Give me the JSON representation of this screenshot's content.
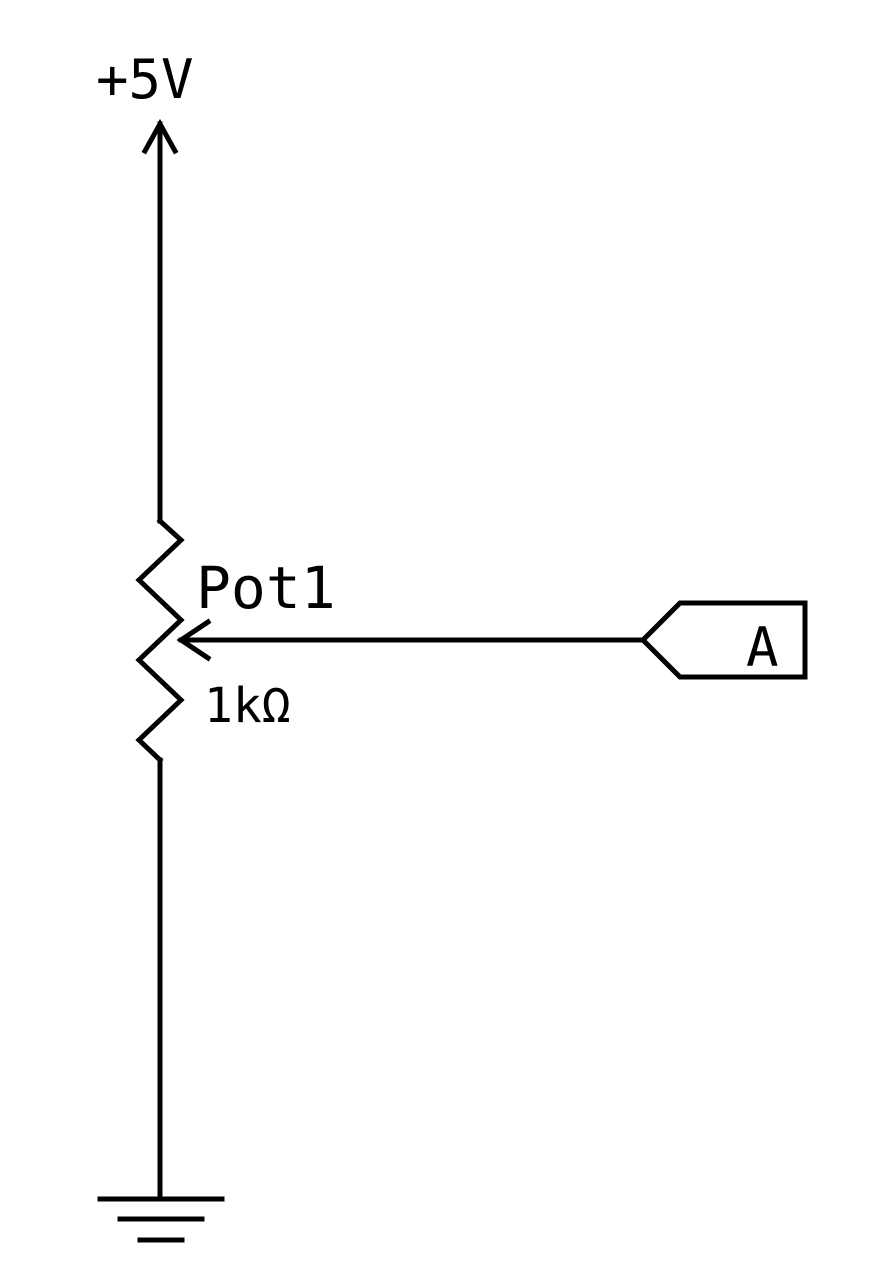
{
  "schematic": {
    "power": {
      "label": "+5V"
    },
    "potentiometer": {
      "reference": "Pot1",
      "value": "1kΩ"
    },
    "port": {
      "label": "A"
    },
    "ground": {
      "label": ""
    }
  }
}
